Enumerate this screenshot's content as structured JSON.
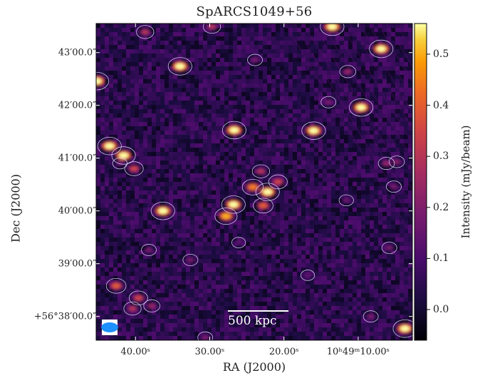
{
  "chart_data": {
    "type": "heatmap",
    "title": "SpARCS1049+56",
    "xlabel": "RA (J2000)",
    "ylabel": "Dec (J2000)",
    "x_ticks": [
      {
        "label": "40.00ˢ",
        "value": 40
      },
      {
        "label": "30.00ˢ",
        "value": 30
      },
      {
        "label": "20.00ˢ",
        "value": 20
      },
      {
        "label": "10ʰ49ᵐ10.00ˢ",
        "value": 10
      }
    ],
    "y_ticks": [
      {
        "label": "43′00.0″",
        "value": 43
      },
      {
        "label": "42′00.0″",
        "value": 42
      },
      {
        "label": "41′00.0″",
        "value": 41
      },
      {
        "label": "40′00.0″",
        "value": 40
      },
      {
        "label": "39′00.0″",
        "value": 39
      },
      {
        "label": "+56°38′00.0″",
        "value": 38
      }
    ],
    "xlim_seconds": [
      45.3,
      2.7
    ],
    "ylim_arcmin": [
      37.55,
      43.55
    ],
    "colorbar": {
      "label": "Intensity (mJy/beam)",
      "range": [
        -0.06,
        0.56
      ],
      "ticks": [
        0.0,
        0.1,
        0.2,
        0.3,
        0.4,
        0.5
      ],
      "tick_labels": [
        "0.0",
        "0.1",
        "0.2",
        "0.3",
        "0.4",
        "0.5"
      ],
      "colormap": "inferno"
    },
    "scale_bar_label": "500 kpc",
    "sources": [
      {
        "ra_s": 38.7,
        "dec_arcmin": 43.39,
        "flux": 0.3
      },
      {
        "ra_s": 34.0,
        "dec_arcmin": 42.74,
        "flux": 0.56
      },
      {
        "ra_s": 23.9,
        "dec_arcmin": 42.86,
        "flux": 0.2
      },
      {
        "ra_s": 29.7,
        "dec_arcmin": 43.49,
        "flux": 0.3
      },
      {
        "ra_s": 13.5,
        "dec_arcmin": 43.49,
        "flux": 0.56
      },
      {
        "ra_s": 6.9,
        "dec_arcmin": 43.07,
        "flux": 0.56
      },
      {
        "ra_s": 11.4,
        "dec_arcmin": 42.64,
        "flux": 0.25
      },
      {
        "ra_s": 45.2,
        "dec_arcmin": 42.46,
        "flux": 0.56
      },
      {
        "ra_s": 9.6,
        "dec_arcmin": 41.96,
        "flux": 0.56
      },
      {
        "ra_s": 14.0,
        "dec_arcmin": 42.06,
        "flux": 0.2
      },
      {
        "ra_s": 26.7,
        "dec_arcmin": 41.53,
        "flux": 0.56
      },
      {
        "ra_s": 16.0,
        "dec_arcmin": 41.52,
        "flux": 0.56
      },
      {
        "ra_s": 43.5,
        "dec_arcmin": 41.23,
        "flux": 0.56
      },
      {
        "ra_s": 41.6,
        "dec_arcmin": 41.05,
        "flux": 0.56
      },
      {
        "ra_s": 40.2,
        "dec_arcmin": 40.8,
        "flux": 0.35
      },
      {
        "ra_s": 23.1,
        "dec_arcmin": 40.75,
        "flux": 0.3
      },
      {
        "ra_s": 24.2,
        "dec_arcmin": 40.45,
        "flux": 0.45
      },
      {
        "ra_s": 22.2,
        "dec_arcmin": 40.36,
        "flux": 0.56
      },
      {
        "ra_s": 20.8,
        "dec_arcmin": 40.55,
        "flux": 0.35
      },
      {
        "ra_s": 26.8,
        "dec_arcmin": 40.12,
        "flux": 0.56
      },
      {
        "ra_s": 27.8,
        "dec_arcmin": 39.9,
        "flux": 0.5
      },
      {
        "ra_s": 22.8,
        "dec_arcmin": 40.1,
        "flux": 0.4
      },
      {
        "ra_s": 36.3,
        "dec_arcmin": 40.0,
        "flux": 0.56
      },
      {
        "ra_s": 6.2,
        "dec_arcmin": 40.9,
        "flux": 0.25
      },
      {
        "ra_s": 5.2,
        "dec_arcmin": 40.46,
        "flux": 0.2
      },
      {
        "ra_s": 4.8,
        "dec_arcmin": 40.93,
        "flux": 0.22
      },
      {
        "ra_s": 11.6,
        "dec_arcmin": 40.2,
        "flux": 0.18
      },
      {
        "ra_s": 42.6,
        "dec_arcmin": 38.58,
        "flux": 0.4
      },
      {
        "ra_s": 39.6,
        "dec_arcmin": 38.35,
        "flux": 0.35
      },
      {
        "ra_s": 40.4,
        "dec_arcmin": 38.15,
        "flux": 0.3
      },
      {
        "ra_s": 37.8,
        "dec_arcmin": 38.2,
        "flux": 0.25
      },
      {
        "ra_s": 38.2,
        "dec_arcmin": 39.26,
        "flux": 0.2
      },
      {
        "ra_s": 32.6,
        "dec_arcmin": 39.07,
        "flux": 0.2
      },
      {
        "ra_s": 3.7,
        "dec_arcmin": 37.77,
        "flux": 0.56
      },
      {
        "ra_s": 8.3,
        "dec_arcmin": 38.0,
        "flux": 0.2
      },
      {
        "ra_s": 30.6,
        "dec_arcmin": 37.6,
        "flux": 0.2
      },
      {
        "ra_s": 16.8,
        "dec_arcmin": 38.78,
        "flux": 0.15
      },
      {
        "ra_s": 26.1,
        "dec_arcmin": 39.4,
        "flux": 0.15
      },
      {
        "ra_s": 42.1,
        "dec_arcmin": 40.9,
        "flux": 0.18
      },
      {
        "ra_s": 5.8,
        "dec_arcmin": 39.3,
        "flux": 0.2
      }
    ]
  },
  "scale_bar_arcmin": 1.15,
  "beam_ellipse": {
    "major_arcmin": 0.32,
    "minor_arcmin": 0.19,
    "color": "#1e90ff"
  },
  "colors": {
    "contour": "#e8e0ff",
    "background_median": "#3c0f6a",
    "frame": "#000000"
  }
}
